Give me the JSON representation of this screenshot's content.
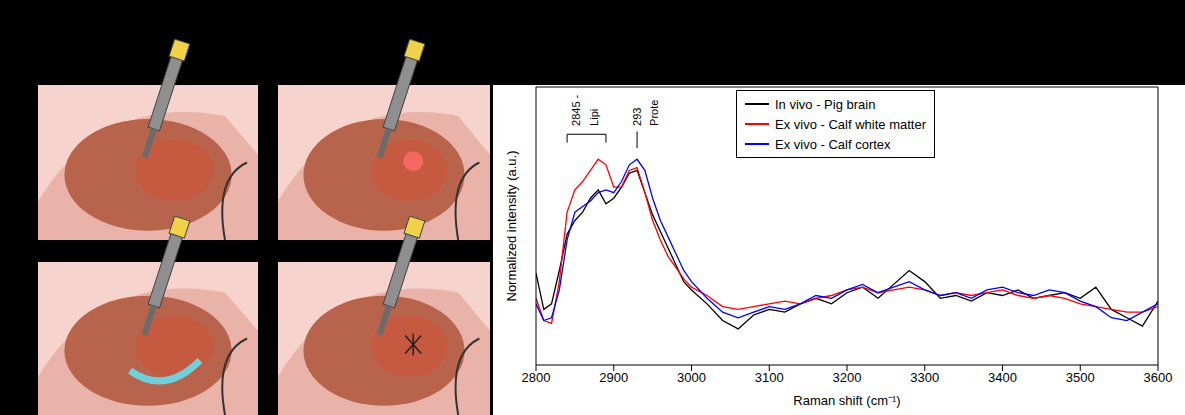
{
  "chart_data": {
    "type": "line",
    "x_label": "Raman shift (cm⁻¹)",
    "y_label": "Normalized intensity (a.u.)",
    "x": [
      2800,
      2810,
      2820,
      2830,
      2840,
      2850,
      2860,
      2870,
      2880,
      2890,
      2900,
      2910,
      2920,
      2930,
      2940,
      2950,
      2960,
      2970,
      2980,
      2990,
      3000,
      3020,
      3040,
      3060,
      3080,
      3100,
      3120,
      3140,
      3160,
      3180,
      3200,
      3220,
      3240,
      3260,
      3280,
      3300,
      3320,
      3340,
      3360,
      3380,
      3400,
      3420,
      3440,
      3460,
      3480,
      3500,
      3520,
      3540,
      3560,
      3580,
      3600
    ],
    "series": [
      {
        "name": "In vivo - Pig brain",
        "color": "#000000",
        "values": [
          0.33,
          0.2,
          0.22,
          0.34,
          0.47,
          0.52,
          0.55,
          0.6,
          0.63,
          0.58,
          0.6,
          0.64,
          0.69,
          0.7,
          0.62,
          0.54,
          0.48,
          0.42,
          0.36,
          0.3,
          0.27,
          0.22,
          0.16,
          0.13,
          0.18,
          0.2,
          0.19,
          0.22,
          0.24,
          0.22,
          0.26,
          0.28,
          0.24,
          0.29,
          0.34,
          0.3,
          0.24,
          0.25,
          0.23,
          0.26,
          0.25,
          0.27,
          0.24,
          0.25,
          0.26,
          0.24,
          0.28,
          0.2,
          0.17,
          0.14,
          0.23
        ]
      },
      {
        "name": "Ex vivo - Calf white matter",
        "color": "#ff0000",
        "values": [
          0.24,
          0.16,
          0.15,
          0.3,
          0.55,
          0.63,
          0.66,
          0.7,
          0.74,
          0.72,
          0.64,
          0.64,
          0.7,
          0.71,
          0.62,
          0.52,
          0.45,
          0.39,
          0.35,
          0.31,
          0.28,
          0.25,
          0.21,
          0.2,
          0.21,
          0.22,
          0.23,
          0.22,
          0.24,
          0.25,
          0.27,
          0.28,
          0.26,
          0.27,
          0.28,
          0.27,
          0.25,
          0.26,
          0.25,
          0.26,
          0.27,
          0.25,
          0.24,
          0.25,
          0.24,
          0.22,
          0.21,
          0.2,
          0.19,
          0.19,
          0.21
        ]
      },
      {
        "name": "Ex vivo - Calf cortex",
        "color": "#0000ff",
        "values": [
          0.22,
          0.16,
          0.17,
          0.27,
          0.45,
          0.55,
          0.57,
          0.59,
          0.62,
          0.63,
          0.62,
          0.66,
          0.72,
          0.74,
          0.7,
          0.6,
          0.52,
          0.46,
          0.4,
          0.34,
          0.3,
          0.24,
          0.19,
          0.17,
          0.19,
          0.21,
          0.2,
          0.22,
          0.25,
          0.24,
          0.27,
          0.29,
          0.26,
          0.28,
          0.3,
          0.27,
          0.25,
          0.26,
          0.24,
          0.27,
          0.28,
          0.26,
          0.25,
          0.27,
          0.26,
          0.23,
          0.21,
          0.17,
          0.16,
          0.19,
          0.22
        ]
      }
    ],
    "xlim": [
      2800,
      3600
    ],
    "xticks": [
      2800,
      2900,
      3000,
      3100,
      3200,
      3300,
      3400,
      3500,
      3600
    ],
    "ylim": [
      0,
      1
    ],
    "tick_labels": "x",
    "legend": "upper right",
    "annotations": [
      {
        "text": "2845 -",
        "x": 2852,
        "y": 0.86
      },
      {
        "text": "Lipi",
        "x": 2874,
        "y": 0.86
      },
      {
        "text": "293",
        "x": 2930,
        "y": 0.86
      },
      {
        "text": "Prote",
        "x": 2952,
        "y": 0.86
      }
    ],
    "brackets": [
      {
        "x": [
          2840,
          2890
        ],
        "y": [
          0.8,
          0.83
        ]
      }
    ],
    "markers": [
      {
        "x": 2930,
        "y": [
          0.78,
          0.84
        ]
      }
    ]
  }
}
